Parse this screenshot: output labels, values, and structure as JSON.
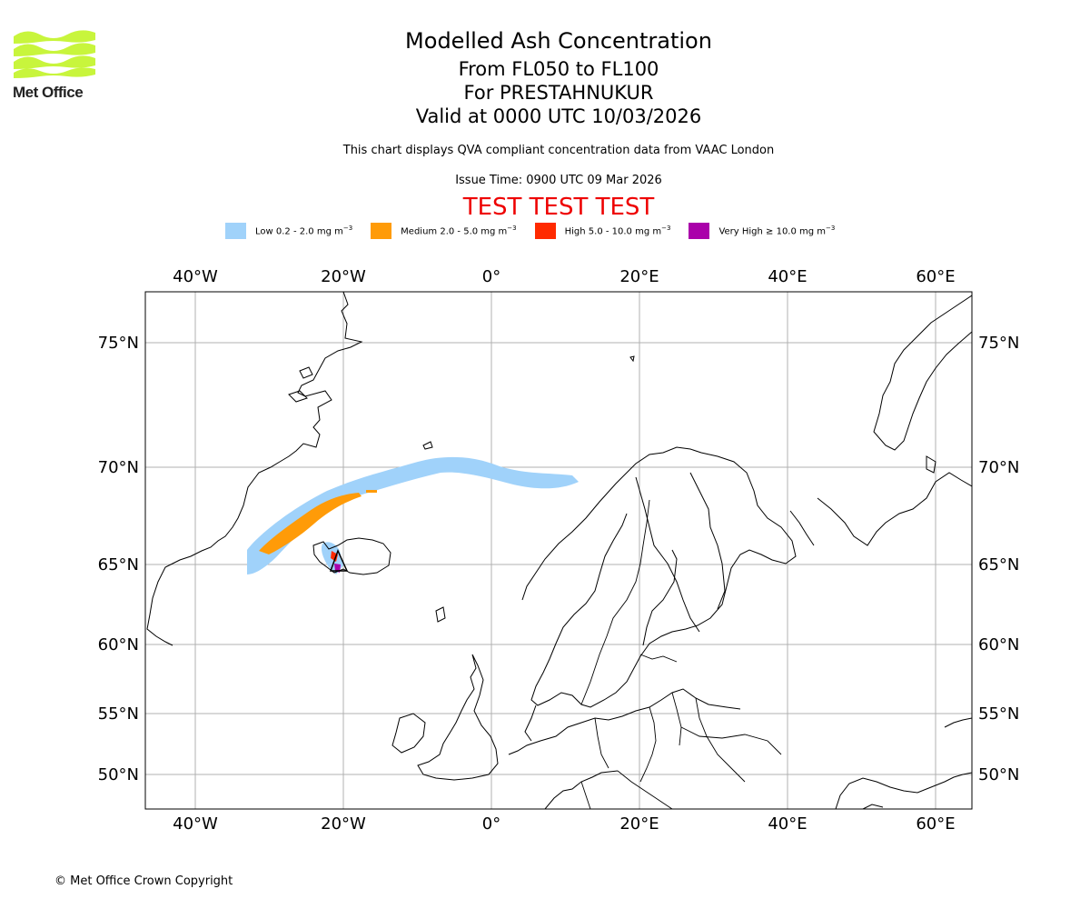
{
  "logo": {
    "name": "Met Office"
  },
  "header": {
    "title": "Modelled Ash Concentration",
    "levels": "From FL050 to FL100",
    "volcano": "For PRESTAHNUKUR",
    "valid": "Valid at 0000 UTC 10/03/2026",
    "subtitle": "This chart displays QVA compliant concentration data from VAAC London",
    "issue": "Issue Time: 0900 UTC 09 Mar 2026",
    "test_banner": "TEST TEST TEST"
  },
  "legend": [
    {
      "label": "Low 0.2 - 2.0 mg m",
      "color": "#a0d2fa"
    },
    {
      "label": "Medium 2.0 - 5.0 mg m",
      "color": "#ff9b08"
    },
    {
      "label": "High 5.0 - 10.0 mg m",
      "color": "#ff2a00"
    },
    {
      "label": "Very High ≥ 10.0 mg m",
      "color": "#aa00aa"
    }
  ],
  "legend_unit_exponent": "−3",
  "map": {
    "lon_ticks": [
      "40°W",
      "20°W",
      "0°",
      "20°E",
      "40°E",
      "60°E"
    ],
    "lat_ticks": [
      "75°N",
      "70°N",
      "65°N",
      "60°N",
      "55°N",
      "50°N"
    ],
    "extent": {
      "lon": [
        -46.6,
        65.0
      ],
      "lat": [
        47.8,
        76.5
      ]
    }
  },
  "footer": {
    "copyright": "© Met Office Crown Copyright"
  }
}
